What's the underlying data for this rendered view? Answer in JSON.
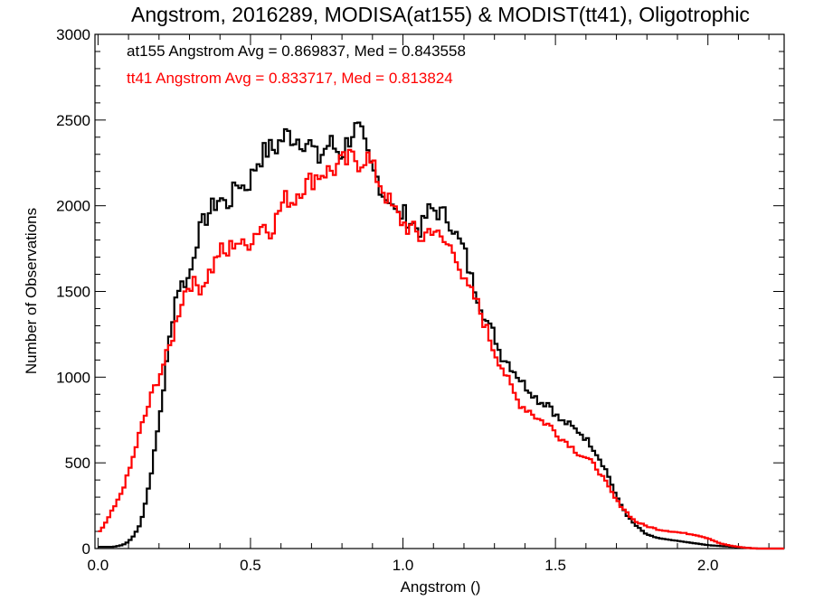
{
  "chart_data": {
    "type": "histogram",
    "title": "Angstrom, 2016289, MODISA(at155) & MODIST(tt41), Oligotrophic",
    "xlabel": "Angstrom ()",
    "ylabel": "Number of Observations",
    "xlim": [
      -0.01,
      2.25
    ],
    "ylim": [
      0,
      3000
    ],
    "xticks": [
      0.0,
      0.5,
      1.0,
      1.5,
      2.0
    ],
    "xtick_labels": [
      "0.0",
      "0.5",
      "1.0",
      "1.5",
      "2.0"
    ],
    "yticks": [
      0,
      500,
      1000,
      1500,
      2000,
      2500,
      3000
    ],
    "ytick_labels": [
      "0",
      "500",
      "1000",
      "1500",
      "2000",
      "2500",
      "3000"
    ],
    "grid": false,
    "annotations": [
      {
        "text": "at155 Angstrom Avg = 0.869837, Med = 0.843558",
        "color": "#000000"
      },
      {
        "text": "tt41 Angstrom Avg = 0.833717, Med = 0.813824",
        "color": "#ff0000"
      }
    ],
    "series": [
      {
        "color": "#000000",
        "x": [
          0.0,
          0.05,
          0.08,
          0.1,
          0.12,
          0.14,
          0.16,
          0.18,
          0.2,
          0.22,
          0.24,
          0.26,
          0.28,
          0.3,
          0.32,
          0.34,
          0.36,
          0.38,
          0.4,
          0.42,
          0.44,
          0.46,
          0.48,
          0.5,
          0.52,
          0.54,
          0.56,
          0.58,
          0.6,
          0.62,
          0.64,
          0.66,
          0.68,
          0.7,
          0.72,
          0.74,
          0.76,
          0.78,
          0.8,
          0.82,
          0.84,
          0.86,
          0.88,
          0.9,
          0.92,
          0.94,
          0.96,
          0.98,
          1.0,
          1.02,
          1.04,
          1.06,
          1.08,
          1.1,
          1.12,
          1.14,
          1.16,
          1.18,
          1.2,
          1.22,
          1.24,
          1.26,
          1.28,
          1.3,
          1.32,
          1.34,
          1.36,
          1.38,
          1.4,
          1.42,
          1.44,
          1.46,
          1.48,
          1.5,
          1.52,
          1.54,
          1.56,
          1.58,
          1.6,
          1.62,
          1.64,
          1.66,
          1.68,
          1.7,
          1.72,
          1.74,
          1.76,
          1.78,
          1.8,
          1.84,
          1.88,
          1.92,
          1.96,
          2.0,
          2.04,
          2.08,
          2.12,
          2.16,
          2.25
        ],
        "values": [
          10,
          10,
          20,
          40,
          80,
          150,
          300,
          500,
          740,
          1000,
          1300,
          1520,
          1550,
          1580,
          1780,
          1880,
          1950,
          2000,
          2050,
          2000,
          2050,
          2150,
          2100,
          2150,
          2250,
          2300,
          2330,
          2330,
          2380,
          2420,
          2400,
          2390,
          2380,
          2350,
          2260,
          2320,
          2370,
          2330,
          2300,
          2380,
          2450,
          2430,
          2300,
          2200,
          2150,
          2050,
          2050,
          1930,
          1960,
          1920,
          1880,
          1860,
          1960,
          1980,
          1960,
          1940,
          1900,
          1800,
          1750,
          1600,
          1500,
          1400,
          1300,
          1250,
          1130,
          1100,
          1050,
          1000,
          950,
          920,
          870,
          850,
          850,
          780,
          740,
          730,
          700,
          680,
          640,
          600,
          540,
          480,
          400,
          300,
          240,
          180,
          140,
          110,
          80,
          60,
          50,
          40,
          30,
          20,
          15,
          10,
          5,
          0,
          0
        ]
      },
      {
        "color": "#ff0000",
        "x": [
          0.0,
          0.02,
          0.04,
          0.06,
          0.08,
          0.1,
          0.12,
          0.14,
          0.16,
          0.18,
          0.2,
          0.22,
          0.24,
          0.26,
          0.28,
          0.3,
          0.32,
          0.34,
          0.36,
          0.38,
          0.4,
          0.42,
          0.44,
          0.46,
          0.48,
          0.5,
          0.52,
          0.54,
          0.56,
          0.58,
          0.6,
          0.62,
          0.64,
          0.66,
          0.68,
          0.7,
          0.72,
          0.74,
          0.76,
          0.78,
          0.8,
          0.82,
          0.84,
          0.86,
          0.88,
          0.9,
          0.92,
          0.94,
          0.96,
          0.98,
          1.0,
          1.02,
          1.04,
          1.06,
          1.08,
          1.1,
          1.12,
          1.14,
          1.16,
          1.18,
          1.2,
          1.22,
          1.24,
          1.26,
          1.28,
          1.3,
          1.32,
          1.34,
          1.36,
          1.38,
          1.4,
          1.42,
          1.44,
          1.46,
          1.48,
          1.5,
          1.52,
          1.54,
          1.56,
          1.58,
          1.6,
          1.62,
          1.64,
          1.66,
          1.68,
          1.7,
          1.72,
          1.74,
          1.76,
          1.8,
          1.84,
          1.88,
          1.92,
          1.96,
          2.0,
          2.04,
          2.08,
          2.12,
          2.16,
          2.25
        ],
        "values": [
          90,
          130,
          200,
          260,
          340,
          440,
          560,
          700,
          800,
          920,
          1000,
          1100,
          1200,
          1350,
          1480,
          1550,
          1540,
          1520,
          1600,
          1650,
          1750,
          1700,
          1780,
          1800,
          1750,
          1800,
          1850,
          1900,
          1850,
          1900,
          2000,
          2050,
          2020,
          2100,
          2120,
          2150,
          2180,
          2200,
          2200,
          2220,
          2250,
          2260,
          2280,
          2250,
          2300,
          2220,
          2150,
          2080,
          2000,
          1950,
          1900,
          1870,
          1850,
          1800,
          1850,
          1880,
          1800,
          1780,
          1750,
          1700,
          1550,
          1500,
          1450,
          1350,
          1250,
          1150,
          1080,
          1000,
          920,
          850,
          820,
          800,
          760,
          740,
          720,
          680,
          640,
          620,
          580,
          550,
          530,
          500,
          460,
          400,
          340,
          280,
          240,
          200,
          160,
          130,
          110,
          100,
          90,
          80,
          60,
          30,
          15,
          5,
          0,
          0
        ]
      }
    ]
  }
}
